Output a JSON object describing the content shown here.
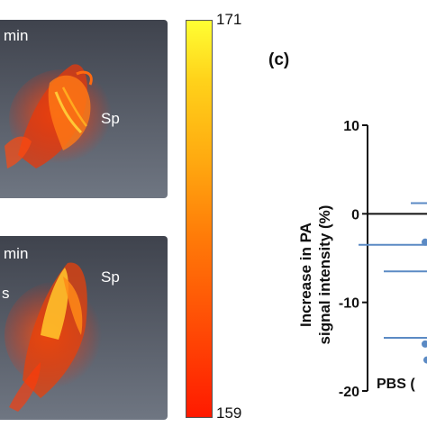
{
  "panels": {
    "top": {
      "corner_label": "min",
      "organ_label": "Sp"
    },
    "bottom": {
      "corner_label": "min",
      "left_label": "s",
      "organ_label": "Sp"
    }
  },
  "colorbar": {
    "max_label": "171",
    "min_label": "159",
    "colors": [
      "#ffff33",
      "#ff1a00"
    ]
  },
  "panel_c": {
    "letter": "(c)"
  },
  "chart_data": {
    "type": "scatter",
    "title": "",
    "ylabel_lines": [
      "Increase in PA",
      "signal intensity (%)"
    ],
    "ylim": [
      -20,
      10
    ],
    "yticks": [
      10,
      0,
      -10,
      -20
    ],
    "yticklabels": [
      "10",
      "0",
      "-10",
      "-20"
    ],
    "categories": [
      "PBS"
    ],
    "category_label_visible": "PBS (",
    "zero_line": true,
    "series": [
      {
        "points": [
          {
            "x": "PBS",
            "y": -3.2
          },
          {
            "x": "PBS",
            "y": -14.7
          },
          {
            "x": "PBS",
            "y": -16.5
          }
        ],
        "mean_lines": [
          1.2,
          -3.5,
          -6.5,
          -14.0
        ],
        "color": "#5b8ac4"
      }
    ]
  }
}
